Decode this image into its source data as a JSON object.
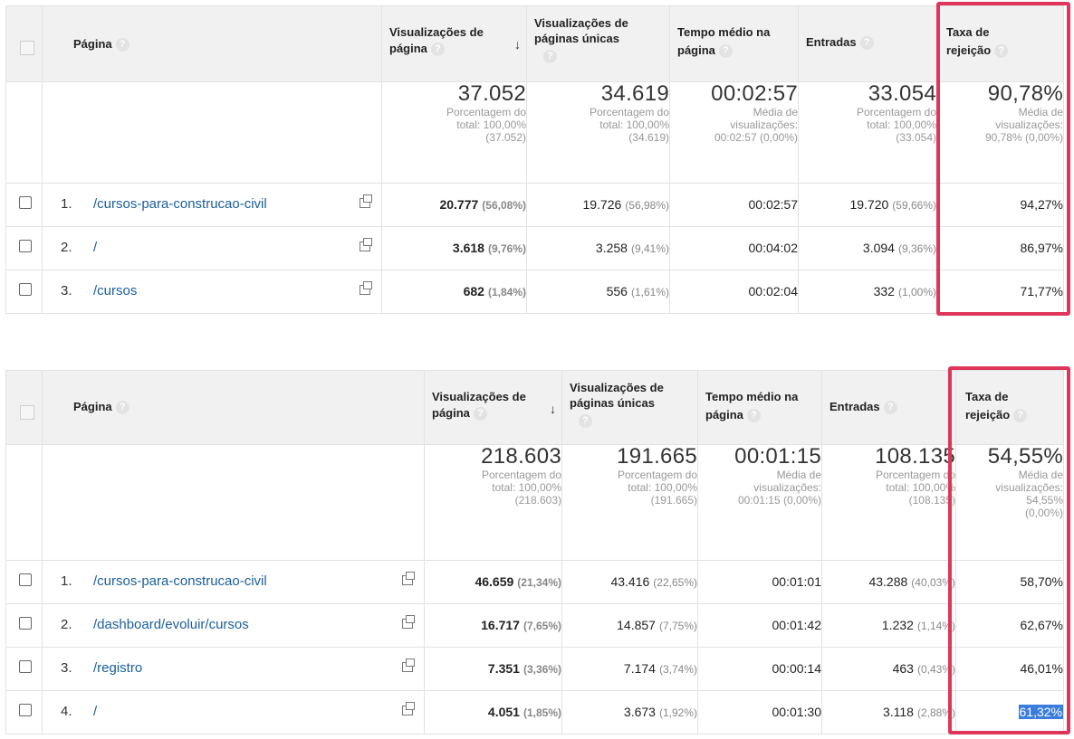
{
  "colors": {
    "link": "#1a5e9a",
    "highlight_box": "#e0355a",
    "selection": "#3b7ddd"
  },
  "icons": {
    "help": "help-circle-icon",
    "sort": "arrow-down-icon",
    "open": "open-external-icon"
  },
  "help_glyph": "?",
  "sort_glyph": "↓",
  "headers": {
    "page": "Página",
    "pageviews_a": "Visualizações de",
    "pageviews_b": "página",
    "unique_a": "Visualizações de",
    "unique_b": "páginas únicas",
    "time_a": "Tempo médio na",
    "time_b": "página",
    "entries": "Entradas",
    "bounce_a": "Taxa de",
    "bounce_b": "rejeição"
  },
  "table1": {
    "totals": {
      "pageviews": {
        "value": "37.052",
        "l1": "Porcentagem do",
        "l2": "total: 100,00%",
        "l3": "(37.052)"
      },
      "unique": {
        "value": "34.619",
        "l1": "Porcentagem do",
        "l2": "total: 100,00%",
        "l3": "(34.619)"
      },
      "time": {
        "value": "00:02:57",
        "l1": "Média de",
        "l2": "visualizações:",
        "l3": "00:02:57 (0,00%)"
      },
      "entries": {
        "value": "33.054",
        "l1": "Porcentagem do",
        "l2": "total: 100,00%",
        "l3": "(33.054)"
      },
      "bounce": {
        "value": "90,78%",
        "l1": "Média de",
        "l2": "visualizações:",
        "l3": "90,78% (0,00%)"
      }
    },
    "rows": [
      {
        "index": "1.",
        "page": "/cursos-para-construcao-civil",
        "pageviews": "20.777",
        "pageviews_pct": "(56,08%)",
        "unique": "19.726",
        "unique_pct": "(56,98%)",
        "time": "00:02:57",
        "entries": "19.720",
        "entries_pct": "(59,66%)",
        "bounce": "94,27%"
      },
      {
        "index": "2.",
        "page": "/",
        "pageviews": "3.618",
        "pageviews_pct": "(9,76%)",
        "unique": "3.258",
        "unique_pct": "(9,41%)",
        "time": "00:04:02",
        "entries": "3.094",
        "entries_pct": "(9,36%)",
        "bounce": "86,97%"
      },
      {
        "index": "3.",
        "page": "/cursos",
        "pageviews": "682",
        "pageviews_pct": "(1,84%)",
        "unique": "556",
        "unique_pct": "(1,61%)",
        "time": "00:02:04",
        "entries": "332",
        "entries_pct": "(1,00%)",
        "bounce": "71,77%"
      }
    ]
  },
  "table2": {
    "totals": {
      "pageviews": {
        "value": "218.603",
        "l1": "Porcentagem do",
        "l2": "total: 100,00%",
        "l3": "(218.603)"
      },
      "unique": {
        "value": "191.665",
        "l1": "Porcentagem do",
        "l2": "total: 100,00%",
        "l3": "(191.665)"
      },
      "time": {
        "value": "00:01:15",
        "l1": "Média de",
        "l2": "visualizações:",
        "l3": "00:01:15 (0,00%)"
      },
      "entries": {
        "value": "108.135",
        "l1": "Porcentagem do",
        "l2": "total: 100,00%",
        "l3": "(108.135)"
      },
      "bounce": {
        "value": "54,55%",
        "l1": "Média de",
        "l2": "visualizações:",
        "l3": "54,55%",
        "l4": "(0,00%)"
      }
    },
    "rows": [
      {
        "index": "1.",
        "page": "/cursos-para-construcao-civil",
        "pageviews": "46.659",
        "pageviews_pct": "(21,34%)",
        "unique": "43.416",
        "unique_pct": "(22,65%)",
        "time": "00:01:01",
        "entries": "43.288",
        "entries_pct": "(40,03%)",
        "bounce": "58,70%"
      },
      {
        "index": "2.",
        "page": "/dashboard/evoluir/cursos",
        "pageviews": "16.717",
        "pageviews_pct": "(7,65%)",
        "unique": "14.857",
        "unique_pct": "(7,75%)",
        "time": "00:01:42",
        "entries": "1.232",
        "entries_pct": "(1,14%)",
        "bounce": "62,67%"
      },
      {
        "index": "3.",
        "page": "/registro",
        "pageviews": "7.351",
        "pageviews_pct": "(3,36%)",
        "unique": "7.174",
        "unique_pct": "(3,74%)",
        "time": "00:00:14",
        "entries": "463",
        "entries_pct": "(0,43%)",
        "bounce": "46,01%"
      },
      {
        "index": "4.",
        "page": "/",
        "pageviews": "4.051",
        "pageviews_pct": "(1,85%)",
        "unique": "3.673",
        "unique_pct": "(1,92%)",
        "time": "00:01:30",
        "entries": "3.118",
        "entries_pct": "(2,88%)",
        "bounce": "61,32%"
      }
    ]
  }
}
